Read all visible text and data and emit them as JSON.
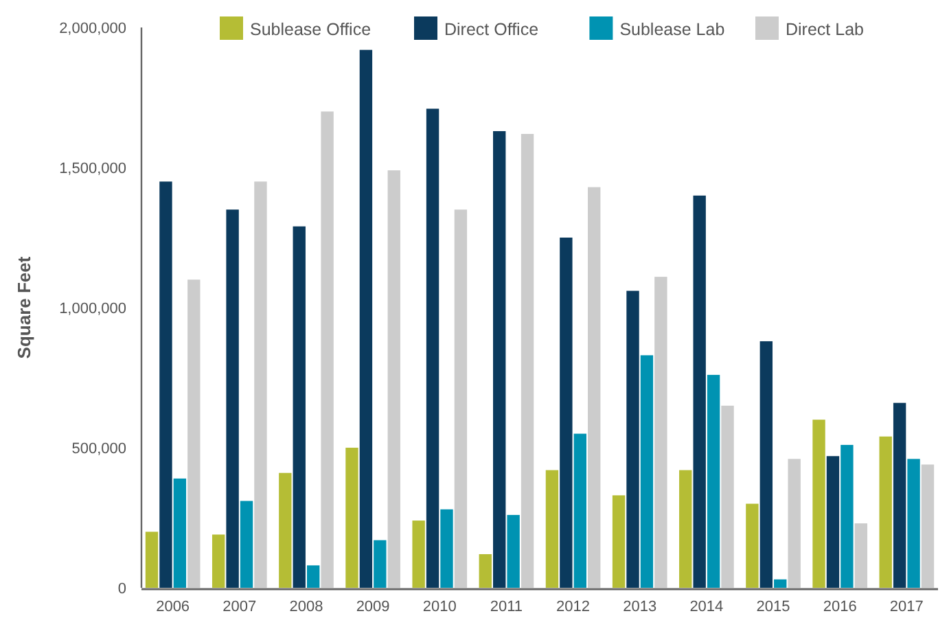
{
  "chart_data": {
    "type": "bar",
    "ylabel": "Square Feet",
    "categories": [
      "2006",
      "2007",
      "2008",
      "2009",
      "2010",
      "2011",
      "2012",
      "2013",
      "2014",
      "2015",
      "2016",
      "2017"
    ],
    "series": [
      {
        "name": "Sublease Office",
        "color": "#b5bd35",
        "values": [
          200000,
          190000,
          410000,
          500000,
          240000,
          120000,
          420000,
          330000,
          420000,
          300000,
          600000,
          540000
        ]
      },
      {
        "name": "Direct Office",
        "color": "#0b3a5d",
        "values": [
          1450000,
          1350000,
          1290000,
          1920000,
          1710000,
          1630000,
          1250000,
          1060000,
          1400000,
          880000,
          470000,
          660000
        ]
      },
      {
        "name": "Sublease Lab",
        "color": "#0093b2",
        "values": [
          390000,
          310000,
          80000,
          170000,
          280000,
          260000,
          550000,
          830000,
          760000,
          30000,
          510000,
          460000
        ]
      },
      {
        "name": "Direct Lab",
        "color": "#cccccc",
        "values": [
          1100000,
          1450000,
          1700000,
          1490000,
          1350000,
          1620000,
          1430000,
          1110000,
          650000,
          460000,
          230000,
          440000
        ]
      }
    ],
    "ylim": [
      0,
      2000000
    ],
    "yticks": [
      {
        "value": 0,
        "label": "0"
      },
      {
        "value": 500000,
        "label": "500,000"
      },
      {
        "value": 1000000,
        "label": "1,000,000"
      },
      {
        "value": 1500000,
        "label": "1,500,000"
      },
      {
        "value": 2000000,
        "label": "2,000,000"
      }
    ],
    "grid": false,
    "legend": "top"
  }
}
